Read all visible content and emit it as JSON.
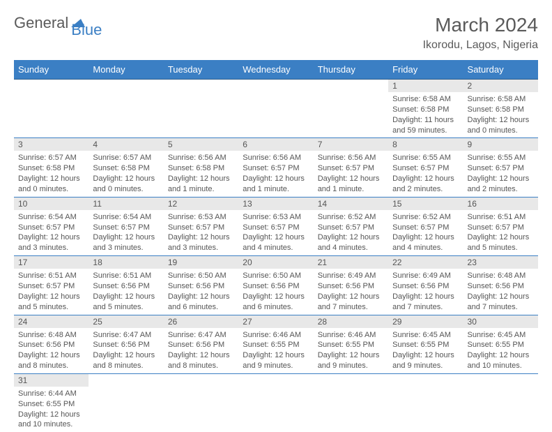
{
  "logo": {
    "text1": "General",
    "text2": "Blue"
  },
  "title": "March 2024",
  "location": "Ikorodu, Lagos, Nigeria",
  "colors": {
    "header_bg": "#3b7fc4",
    "header_border": "#2a5a8a",
    "row_border": "#3b7fc4",
    "daynum_bg": "#e8e8e8",
    "text": "#555555",
    "page_bg": "#ffffff"
  },
  "daysOfWeek": [
    "Sunday",
    "Monday",
    "Tuesday",
    "Wednesday",
    "Thursday",
    "Friday",
    "Saturday"
  ],
  "weeks": [
    [
      {
        "blank": true
      },
      {
        "blank": true
      },
      {
        "blank": true
      },
      {
        "blank": true
      },
      {
        "blank": true
      },
      {
        "day": "1",
        "sunrise": "6:58 AM",
        "sunset": "6:58 PM",
        "daylight": "11 hours and 59 minutes."
      },
      {
        "day": "2",
        "sunrise": "6:58 AM",
        "sunset": "6:58 PM",
        "daylight": "12 hours and 0 minutes."
      }
    ],
    [
      {
        "day": "3",
        "sunrise": "6:57 AM",
        "sunset": "6:58 PM",
        "daylight": "12 hours and 0 minutes."
      },
      {
        "day": "4",
        "sunrise": "6:57 AM",
        "sunset": "6:58 PM",
        "daylight": "12 hours and 0 minutes."
      },
      {
        "day": "5",
        "sunrise": "6:56 AM",
        "sunset": "6:58 PM",
        "daylight": "12 hours and 1 minute."
      },
      {
        "day": "6",
        "sunrise": "6:56 AM",
        "sunset": "6:57 PM",
        "daylight": "12 hours and 1 minute."
      },
      {
        "day": "7",
        "sunrise": "6:56 AM",
        "sunset": "6:57 PM",
        "daylight": "12 hours and 1 minute."
      },
      {
        "day": "8",
        "sunrise": "6:55 AM",
        "sunset": "6:57 PM",
        "daylight": "12 hours and 2 minutes."
      },
      {
        "day": "9",
        "sunrise": "6:55 AM",
        "sunset": "6:57 PM",
        "daylight": "12 hours and 2 minutes."
      }
    ],
    [
      {
        "day": "10",
        "sunrise": "6:54 AM",
        "sunset": "6:57 PM",
        "daylight": "12 hours and 3 minutes."
      },
      {
        "day": "11",
        "sunrise": "6:54 AM",
        "sunset": "6:57 PM",
        "daylight": "12 hours and 3 minutes."
      },
      {
        "day": "12",
        "sunrise": "6:53 AM",
        "sunset": "6:57 PM",
        "daylight": "12 hours and 3 minutes."
      },
      {
        "day": "13",
        "sunrise": "6:53 AM",
        "sunset": "6:57 PM",
        "daylight": "12 hours and 4 minutes."
      },
      {
        "day": "14",
        "sunrise": "6:52 AM",
        "sunset": "6:57 PM",
        "daylight": "12 hours and 4 minutes."
      },
      {
        "day": "15",
        "sunrise": "6:52 AM",
        "sunset": "6:57 PM",
        "daylight": "12 hours and 4 minutes."
      },
      {
        "day": "16",
        "sunrise": "6:51 AM",
        "sunset": "6:57 PM",
        "daylight": "12 hours and 5 minutes."
      }
    ],
    [
      {
        "day": "17",
        "sunrise": "6:51 AM",
        "sunset": "6:57 PM",
        "daylight": "12 hours and 5 minutes."
      },
      {
        "day": "18",
        "sunrise": "6:51 AM",
        "sunset": "6:56 PM",
        "daylight": "12 hours and 5 minutes."
      },
      {
        "day": "19",
        "sunrise": "6:50 AM",
        "sunset": "6:56 PM",
        "daylight": "12 hours and 6 minutes."
      },
      {
        "day": "20",
        "sunrise": "6:50 AM",
        "sunset": "6:56 PM",
        "daylight": "12 hours and 6 minutes."
      },
      {
        "day": "21",
        "sunrise": "6:49 AM",
        "sunset": "6:56 PM",
        "daylight": "12 hours and 7 minutes."
      },
      {
        "day": "22",
        "sunrise": "6:49 AM",
        "sunset": "6:56 PM",
        "daylight": "12 hours and 7 minutes."
      },
      {
        "day": "23",
        "sunrise": "6:48 AM",
        "sunset": "6:56 PM",
        "daylight": "12 hours and 7 minutes."
      }
    ],
    [
      {
        "day": "24",
        "sunrise": "6:48 AM",
        "sunset": "6:56 PM",
        "daylight": "12 hours and 8 minutes."
      },
      {
        "day": "25",
        "sunrise": "6:47 AM",
        "sunset": "6:56 PM",
        "daylight": "12 hours and 8 minutes."
      },
      {
        "day": "26",
        "sunrise": "6:47 AM",
        "sunset": "6:56 PM",
        "daylight": "12 hours and 8 minutes."
      },
      {
        "day": "27",
        "sunrise": "6:46 AM",
        "sunset": "6:55 PM",
        "daylight": "12 hours and 9 minutes."
      },
      {
        "day": "28",
        "sunrise": "6:46 AM",
        "sunset": "6:55 PM",
        "daylight": "12 hours and 9 minutes."
      },
      {
        "day": "29",
        "sunrise": "6:45 AM",
        "sunset": "6:55 PM",
        "daylight": "12 hours and 9 minutes."
      },
      {
        "day": "30",
        "sunrise": "6:45 AM",
        "sunset": "6:55 PM",
        "daylight": "12 hours and 10 minutes."
      }
    ],
    [
      {
        "day": "31",
        "sunrise": "6:44 AM",
        "sunset": "6:55 PM",
        "daylight": "12 hours and 10 minutes."
      },
      {
        "blank": true
      },
      {
        "blank": true
      },
      {
        "blank": true
      },
      {
        "blank": true
      },
      {
        "blank": true
      },
      {
        "blank": true
      }
    ]
  ],
  "labels": {
    "sunrise": "Sunrise:",
    "sunset": "Sunset:",
    "daylight": "Daylight:"
  }
}
